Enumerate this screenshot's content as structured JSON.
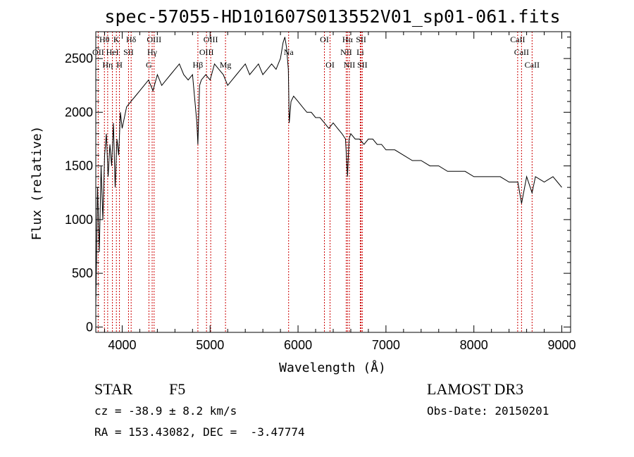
{
  "chart_data": {
    "type": "line",
    "title": "spec-57055-HD101607S013552V01_sp01-061.fits",
    "xlabel": "Wavelength (Å)",
    "ylabel": "Flux (relative)",
    "xlim": [
      3700,
      9100
    ],
    "ylim": [
      -50,
      2750
    ],
    "xticks": [
      4000,
      5000,
      6000,
      7000,
      8000,
      9000
    ],
    "yticks": [
      0,
      500,
      1000,
      1500,
      2000,
      2500
    ],
    "grid": false,
    "series": [
      {
        "name": "spectrum",
        "x": [
          3700,
          3720,
          3740,
          3760,
          3780,
          3800,
          3820,
          3840,
          3860,
          3880,
          3900,
          3920,
          3940,
          3960,
          3980,
          4000,
          4050,
          4100,
          4150,
          4200,
          4250,
          4300,
          4350,
          4400,
          4450,
          4500,
          4550,
          4600,
          4650,
          4700,
          4750,
          4800,
          4850,
          4861,
          4880,
          4900,
          4950,
          5000,
          5050,
          5100,
          5150,
          5200,
          5250,
          5300,
          5350,
          5400,
          5450,
          5500,
          5550,
          5600,
          5650,
          5700,
          5750,
          5800,
          5830,
          5850,
          5870,
          5890,
          5900,
          5920,
          5950,
          6000,
          6050,
          6100,
          6150,
          6200,
          6250,
          6300,
          6350,
          6400,
          6450,
          6500,
          6540,
          6563,
          6580,
          6600,
          6650,
          6700,
          6750,
          6800,
          6850,
          6900,
          6950,
          7000,
          7100,
          7200,
          7300,
          7400,
          7500,
          7600,
          7700,
          7800,
          7900,
          8000,
          8100,
          8200,
          8300,
          8400,
          8500,
          8542,
          8600,
          8662,
          8700,
          8800,
          8900,
          8950,
          9000
        ],
        "y": [
          200,
          1300,
          700,
          1500,
          1000,
          1600,
          1800,
          1400,
          1700,
          1500,
          1900,
          1300,
          1750,
          1600,
          2000,
          1850,
          2050,
          2100,
          2150,
          2200,
          2250,
          2300,
          2200,
          2350,
          2250,
          2300,
          2350,
          2400,
          2450,
          2350,
          2300,
          2350,
          1900,
          1700,
          2250,
          2300,
          2350,
          2300,
          2450,
          2400,
          2350,
          2250,
          2300,
          2350,
          2400,
          2450,
          2350,
          2400,
          2450,
          2350,
          2400,
          2450,
          2400,
          2500,
          2650,
          2700,
          2600,
          2400,
          1900,
          2100,
          2150,
          2100,
          2050,
          2000,
          2000,
          1950,
          1950,
          1900,
          1850,
          1900,
          1850,
          1800,
          1750,
          1400,
          1750,
          1800,
          1750,
          1750,
          1700,
          1750,
          1750,
          1700,
          1700,
          1650,
          1650,
          1600,
          1550,
          1550,
          1500,
          1500,
          1450,
          1450,
          1450,
          1400,
          1400,
          1400,
          1400,
          1350,
          1350,
          1150,
          1400,
          1250,
          1400,
          1350,
          1400,
          1350,
          1300
        ]
      }
    ],
    "lines": [
      {
        "name": "Hθ",
        "wave": 3798,
        "row": 0
      },
      {
        "name": "OII",
        "wave": 3727,
        "row": 1
      },
      {
        "name": "Hη",
        "wave": 3835,
        "row": 2
      },
      {
        "name": "HeI",
        "wave": 3889,
        "row": 1
      },
      {
        "name": "K",
        "wave": 3934,
        "row": 0
      },
      {
        "name": "H",
        "wave": 3969,
        "row": 2
      },
      {
        "name": "SII",
        "wave": 4072,
        "row": 1
      },
      {
        "name": "Hδ",
        "wave": 4102,
        "row": 0
      },
      {
        "name": "OIII",
        "wave": 4363,
        "row": 0
      },
      {
        "name": "Hγ",
        "wave": 4341,
        "row": 1
      },
      {
        "name": "G",
        "wave": 4304,
        "row": 2
      },
      {
        "name": "Hβ",
        "wave": 4861,
        "row": 2
      },
      {
        "name": "OIII",
        "wave": 5007,
        "row": 0
      },
      {
        "name": "OIII",
        "wave": 4959,
        "row": 1
      },
      {
        "name": "Mg",
        "wave": 5175,
        "row": 2
      },
      {
        "name": "Na",
        "wave": 5893,
        "row": 1
      },
      {
        "name": "OI",
        "wave": 6300,
        "row": 0
      },
      {
        "name": "OI",
        "wave": 6364,
        "row": 2
      },
      {
        "name": "Hα",
        "wave": 6563,
        "row": 0
      },
      {
        "name": "NII",
        "wave": 6548,
        "row": 1
      },
      {
        "name": "NII",
        "wave": 6584,
        "row": 2
      },
      {
        "name": "SII",
        "wave": 6717,
        "row": 0
      },
      {
        "name": "Li",
        "wave": 6708,
        "row": 1
      },
      {
        "name": "SII",
        "wave": 6731,
        "row": 2
      },
      {
        "name": "CaII",
        "wave": 8498,
        "row": 0
      },
      {
        "name": "CaII",
        "wave": 8542,
        "row": 1
      },
      {
        "name": "CaII",
        "wave": 8662,
        "row": 2
      }
    ]
  },
  "info": {
    "object_type": "STAR",
    "subclass": "F5",
    "survey": "LAMOST DR3",
    "cz_line": "cz = -38.9 ± 8.2 km/s",
    "obs_date": "Obs-Date: 20150201",
    "coords": "RA = 153.43082, DEC =  -3.47774"
  },
  "colors": {
    "spectrum": "#000000",
    "line_markers": "#cc0000",
    "axes": "#000000"
  }
}
